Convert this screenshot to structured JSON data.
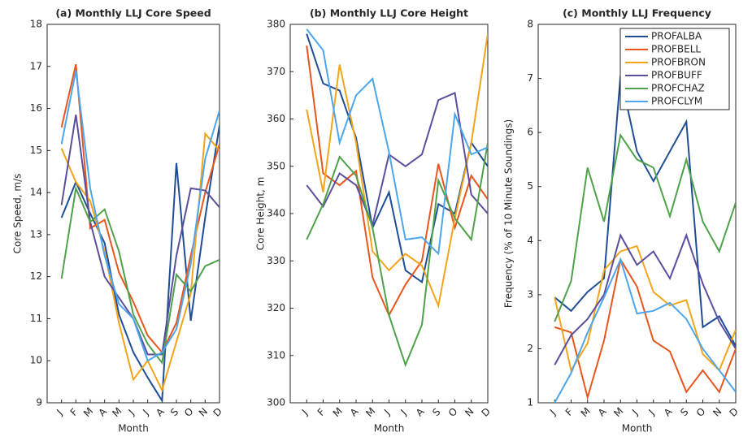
{
  "chart_data": [
    {
      "type": "line",
      "title": "(a) Monthly LLJ Core Speed",
      "x_label": "Month",
      "y_label": "Core Speed, m/s",
      "categories": [
        "J",
        "F",
        "M",
        "A",
        "M",
        "J",
        "J",
        "A",
        "S",
        "O",
        "N",
        "D"
      ],
      "ylim": [
        9,
        18
      ],
      "yticks": [
        9,
        10,
        11,
        12,
        13,
        14,
        15,
        16,
        17,
        18
      ],
      "series": [
        {
          "color": "#1f4e96",
          "values": [
            13.4,
            14.25,
            13.5,
            12.8,
            11.1,
            10.2,
            9.6,
            9.05,
            14.7,
            10.95,
            13.4,
            15.6
          ]
        },
        {
          "color": "#e8561e",
          "values": [
            15.55,
            17.05,
            13.15,
            13.35,
            12.1,
            11.4,
            10.6,
            10.2,
            10.9,
            12.5,
            14.0,
            15.15
          ]
        },
        {
          "color": "#f2a51a",
          "values": [
            15.05,
            14.25,
            13.8,
            12.6,
            10.9,
            9.55,
            10.0,
            9.3,
            10.45,
            11.6,
            15.4,
            15.0
          ]
        },
        {
          "color": "#5a4e9e",
          "values": [
            13.7,
            15.85,
            13.3,
            12.0,
            11.5,
            11.0,
            10.15,
            10.15,
            12.5,
            14.1,
            14.05,
            13.65
          ]
        },
        {
          "color": "#4ea24a",
          "values": [
            11.95,
            14.1,
            13.3,
            13.6,
            12.6,
            11.1,
            10.4,
            9.95,
            12.05,
            11.65,
            12.25,
            12.4
          ]
        },
        {
          "color": "#4da6ec",
          "values": [
            15.15,
            16.9,
            14.1,
            12.5,
            11.35,
            11.0,
            10.0,
            10.2,
            10.75,
            12.3,
            14.8,
            15.95
          ]
        }
      ]
    },
    {
      "type": "line",
      "title": "(b) Monthly LLJ Core Height",
      "x_label": "Month",
      "y_label": "Core Height, m",
      "categories": [
        "J",
        "F",
        "M",
        "A",
        "M",
        "J",
        "J",
        "A",
        "S",
        "O",
        "N",
        "D"
      ],
      "ylim": [
        300,
        380
      ],
      "yticks": [
        300,
        310,
        320,
        330,
        340,
        350,
        360,
        370,
        380
      ],
      "series": [
        {
          "color": "#1f4e96",
          "values": [
            378,
            367.5,
            366,
            356,
            337,
            344.5,
            328,
            325.5,
            342,
            340,
            355,
            350
          ]
        },
        {
          "color": "#e8561e",
          "values": [
            375.5,
            348.5,
            346,
            349,
            326.5,
            318.5,
            325,
            330,
            350.5,
            337,
            348,
            343
          ]
        },
        {
          "color": "#f2a51a",
          "values": [
            362,
            344.5,
            371.5,
            355,
            332,
            328,
            331.5,
            329,
            320.5,
            339,
            355,
            378
          ]
        },
        {
          "color": "#5a4e9e",
          "values": [
            346,
            341.5,
            348.5,
            346,
            337.5,
            352.5,
            350,
            352.5,
            364,
            365.5,
            344,
            340
          ]
        },
        {
          "color": "#4ea24a",
          "values": [
            334.5,
            342,
            352,
            348,
            337,
            318.5,
            308,
            316.5,
            347,
            339,
            334.5,
            355
          ]
        },
        {
          "color": "#4da6ec",
          "values": [
            379,
            374.5,
            355,
            365,
            368.5,
            353,
            334.5,
            335,
            331.5,
            361,
            352.5,
            354
          ]
        }
      ]
    },
    {
      "type": "line",
      "title": "(c) Monthly LLJ Frequency",
      "x_label": "Month",
      "y_label": "Frequency (% of 10 Minute Soundings)",
      "categories": [
        "J",
        "F",
        "M",
        "A",
        "M",
        "J",
        "J",
        "A",
        "S",
        "O",
        "N",
        "D"
      ],
      "ylim": [
        1,
        8
      ],
      "yticks": [
        1,
        2,
        3,
        4,
        5,
        6,
        7,
        8
      ],
      "legend": "northeast",
      "series": [
        {
          "name": "PROFALBA",
          "color": "#1f4e96",
          "values": [
            2.95,
            2.7,
            3.05,
            3.3,
            7.05,
            5.65,
            5.1,
            5.65,
            6.2,
            2.4,
            2.6,
            2.05
          ]
        },
        {
          "name": "PROFBELL",
          "color": "#e8561e",
          "values": [
            2.4,
            2.3,
            1.1,
            2.15,
            3.65,
            3.15,
            2.15,
            1.95,
            1.2,
            1.6,
            1.2,
            2.0
          ]
        },
        {
          "name": "PROFBRON",
          "color": "#f2a51a",
          "values": [
            2.95,
            1.6,
            2.1,
            3.45,
            3.8,
            3.9,
            3.05,
            2.8,
            2.9,
            1.9,
            1.6,
            2.35
          ]
        },
        {
          "name": "PROFBUFF",
          "color": "#5a4e9e",
          "values": [
            1.7,
            2.25,
            2.55,
            3.0,
            4.1,
            3.55,
            3.8,
            3.3,
            4.1,
            3.2,
            2.5,
            2.0
          ]
        },
        {
          "name": "PROFCHAZ",
          "color": "#4ea24a",
          "values": [
            2.5,
            3.25,
            5.35,
            4.35,
            5.95,
            5.5,
            5.35,
            4.45,
            5.5,
            4.35,
            3.8,
            4.7
          ]
        },
        {
          "name": "PROFCLYM",
          "color": "#4da6ec",
          "values": [
            1.0,
            1.55,
            2.3,
            2.95,
            3.65,
            2.65,
            2.7,
            2.85,
            2.55,
            2.0,
            1.6,
            1.2
          ]
        }
      ]
    }
  ]
}
